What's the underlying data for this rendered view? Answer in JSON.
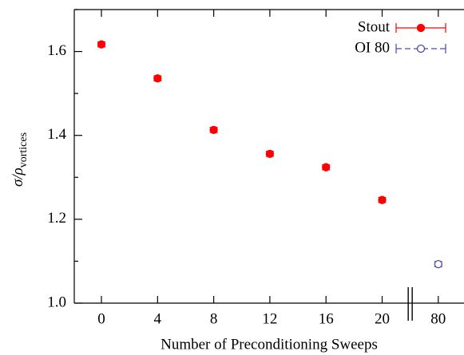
{
  "chart_data": {
    "type": "scatter",
    "x_label": "Number of Preconditioning Sweeps",
    "y_label": "σ/ρ",
    "y_label_subscript": "vortices",
    "categories": [
      "0",
      "4",
      "8",
      "12",
      "16",
      "20",
      "80"
    ],
    "series": [
      {
        "name": "Stout",
        "color": "#ff0000",
        "marker": "filled",
        "dashed": false,
        "values": [
          1.617,
          1.536,
          1.413,
          1.356,
          1.324,
          1.246,
          null
        ],
        "errors": [
          0.006,
          0.006,
          0.006,
          0.006,
          0.006,
          0.006,
          null
        ]
      },
      {
        "name": "OI 80",
        "color": "#4a4aa8",
        "marker": "open",
        "dashed": true,
        "values": [
          null,
          null,
          null,
          null,
          null,
          null,
          1.093
        ],
        "errors": [
          null,
          null,
          null,
          null,
          null,
          null,
          0.006
        ]
      }
    ],
    "ylim": [
      1.0,
      1.7
    ],
    "yticks": [
      {
        "value": 1,
        "label": "1.0"
      },
      1.2,
      1.4,
      1.6
    ],
    "minor_yticks": [
      1.1,
      1.3,
      1.5,
      1.7
    ],
    "axis_break": true,
    "legend": "upper right"
  }
}
